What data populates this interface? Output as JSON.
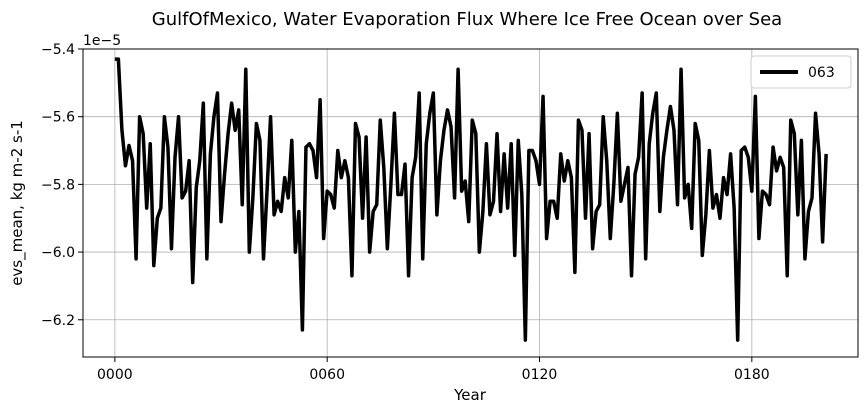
{
  "chart_data": {
    "type": "line",
    "title": "GulfOfMexico, Water Evaporation Flux Where Ice Free Ocean over Sea",
    "xlabel": "Year",
    "ylabel": "evs_mean, kg m-2 s-1",
    "y_offset_label": "1e−5",
    "xlim": [
      -9,
      210
    ],
    "ylim": [
      -6.31,
      -5.4
    ],
    "grid": true,
    "legend_position": "top-right",
    "x_ticks": [
      0,
      60,
      120,
      180
    ],
    "x_tick_labels": [
      "0000",
      "0060",
      "0120",
      "0180"
    ],
    "y_ticks": [
      -6.2,
      -6.0,
      -5.8,
      -5.6,
      -5.4
    ],
    "y_tick_labels": [
      "−6.2",
      "−6.0",
      "−5.8",
      "−5.6",
      "−5.4"
    ],
    "series": [
      {
        "name": "063",
        "color": "#000000",
        "x_start": 0,
        "x_step": 1,
        "values": [
          -5.43,
          -5.43,
          -5.64,
          -5.745,
          -5.685,
          -5.73,
          -6.02,
          -5.6,
          -5.65,
          -5.87,
          -5.68,
          -6.04,
          -5.9,
          -5.87,
          -5.6,
          -5.69,
          -5.99,
          -5.72,
          -5.6,
          -5.84,
          -5.82,
          -5.73,
          -6.09,
          -5.81,
          -5.73,
          -5.56,
          -6.02,
          -5.71,
          -5.6,
          -5.53,
          -5.91,
          -5.77,
          -5.65,
          -5.56,
          -5.64,
          -5.58,
          -5.86,
          -5.46,
          -6.0,
          -5.84,
          -5.62,
          -5.67,
          -6.02,
          -5.82,
          -5.6,
          -5.89,
          -5.85,
          -5.88,
          -5.78,
          -5.84,
          -5.67,
          -6.0,
          -5.88,
          -6.23,
          -5.69,
          -5.68,
          -5.7,
          -5.78,
          -5.55,
          -5.96,
          -5.82,
          -5.83,
          -5.87,
          -5.7,
          -5.78,
          -5.73,
          -5.78,
          -6.07,
          -5.62,
          -5.66,
          -5.9,
          -5.66,
          -6.0,
          -5.88,
          -5.86,
          -5.61,
          -5.75,
          -5.99,
          -5.8,
          -5.59,
          -5.83,
          -5.83,
          -5.74,
          -6.07,
          -5.78,
          -5.72,
          -5.53,
          -6.02,
          -5.68,
          -5.59,
          -5.53,
          -5.89,
          -5.73,
          -5.64,
          -5.58,
          -5.63,
          -5.84,
          -5.46,
          -5.82,
          -5.79,
          -5.91,
          -5.61,
          -5.65,
          -6.0,
          -5.88,
          -5.68,
          -5.89,
          -5.85,
          -5.65,
          -5.88,
          -5.71,
          -5.87,
          -5.68,
          -6.01,
          -5.67,
          -5.83,
          -6.26,
          -5.7,
          -5.7,
          -5.73,
          -5.8,
          -5.54,
          -5.96,
          -5.85,
          -5.85,
          -5.9,
          -5.71,
          -5.79,
          -5.73,
          -5.78,
          -6.06,
          -5.61,
          -5.64,
          -5.9,
          -5.65,
          -5.99,
          -5.88,
          -5.86,
          -5.6,
          -5.73,
          -5.96,
          -5.8,
          -5.59,
          -5.85,
          -5.8,
          -5.75,
          -6.07,
          -5.77,
          -5.72,
          -5.53,
          -6.02,
          -5.68,
          -5.59,
          -5.53,
          -5.88,
          -5.72,
          -5.64,
          -5.57,
          -5.64,
          -5.86,
          -5.46,
          -5.84,
          -5.8,
          -5.93,
          -5.62,
          -5.67,
          -6.01,
          -5.89,
          -5.7,
          -5.87,
          -5.83,
          -5.9,
          -5.78,
          -5.83,
          -5.71,
          -5.87,
          -6.26,
          -5.7,
          -5.69,
          -5.72,
          -5.82,
          -5.54,
          -5.96,
          -5.82,
          -5.83,
          -5.86,
          -5.69,
          -5.76,
          -5.72,
          -5.75,
          -6.07,
          -5.61,
          -5.65,
          -5.89,
          -5.67,
          -6.02,
          -5.88,
          -5.84,
          -5.59,
          -5.71,
          -5.97,
          -5.71
        ]
      }
    ]
  }
}
